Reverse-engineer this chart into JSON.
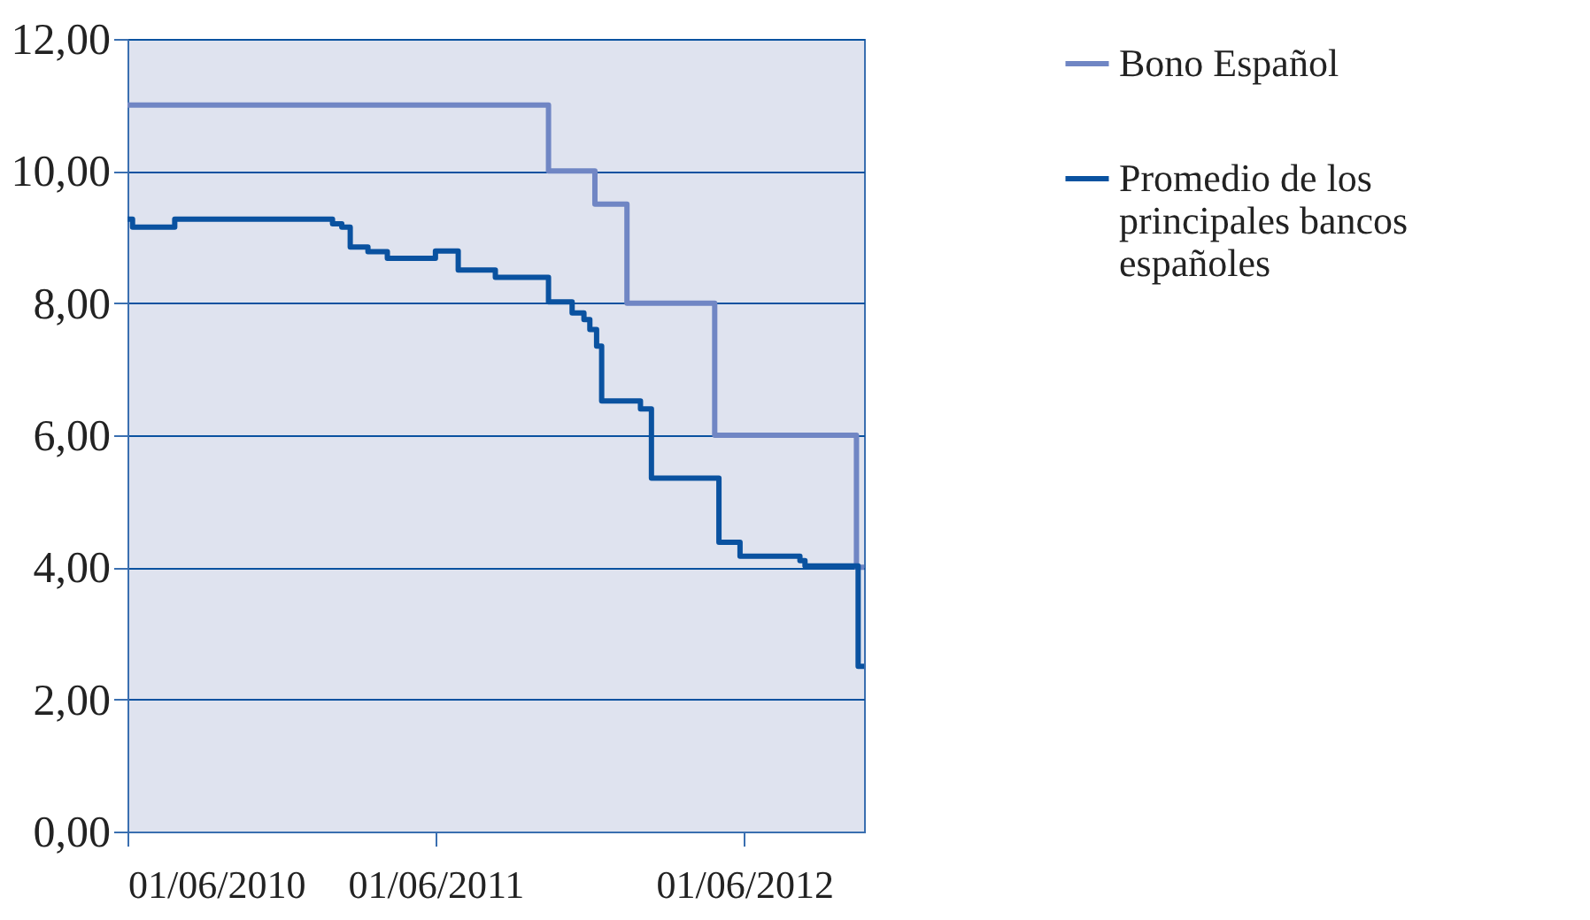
{
  "chart_data": {
    "type": "step",
    "legend": "right",
    "grid": "y",
    "marker": "none",
    "line_style": "solid",
    "xlim": [
      "2010-06-01",
      "2012-10-21"
    ],
    "xticks": [
      {
        "value": "2010-06-01",
        "label": "01/06/2010"
      },
      {
        "value": "2011-06-01",
        "label": "01/06/2011"
      },
      {
        "value": "2012-06-01",
        "label": "01/06/2012"
      }
    ],
    "ylim": [
      0,
      12
    ],
    "yticks": [
      {
        "value": 0,
        "label": "0,00"
      },
      {
        "value": 2,
        "label": "2,00"
      },
      {
        "value": 4,
        "label": "4,00"
      },
      {
        "value": 6,
        "label": "6,00"
      },
      {
        "value": 8,
        "label": "8,00"
      },
      {
        "value": 10,
        "label": "10,00"
      },
      {
        "value": 12,
        "label": "12,00"
      }
    ],
    "series": [
      {
        "name": "Bono Español",
        "color": "#7086c4",
        "x": [
          "2010-06-01",
          "2011-10-13",
          "2011-12-07",
          "2012-01-14",
          "2012-04-27",
          "2012-10-12",
          "2012-10-21"
        ],
        "values": [
          11.0,
          10.0,
          9.5,
          8.0,
          6.0,
          4.0,
          4.0
        ]
      },
      {
        "name": "Promedio de los principales bancos españoles",
        "color": "#0a52a0",
        "x": [
          "2010-06-01",
          "2010-06-07",
          "2010-07-27",
          "2011-01-30",
          "2011-02-10",
          "2011-02-20",
          "2011-03-13",
          "2011-04-05",
          "2011-06-01",
          "2011-06-28",
          "2011-08-11",
          "2011-10-13",
          "2011-11-10",
          "2011-11-24",
          "2011-12-01",
          "2011-12-09",
          "2011-12-15",
          "2012-01-30",
          "2012-02-12",
          "2012-05-02",
          "2012-05-27",
          "2012-08-06",
          "2012-08-12",
          "2012-10-14",
          "2012-10-21"
        ],
        "values": [
          9.27,
          9.15,
          9.27,
          9.2,
          9.15,
          8.85,
          8.78,
          8.68,
          8.79,
          8.5,
          8.39,
          8.02,
          7.85,
          7.75,
          7.6,
          7.35,
          6.52,
          6.4,
          5.35,
          4.38,
          4.17,
          4.1,
          4.02,
          2.5,
          2.5
        ]
      }
    ]
  }
}
